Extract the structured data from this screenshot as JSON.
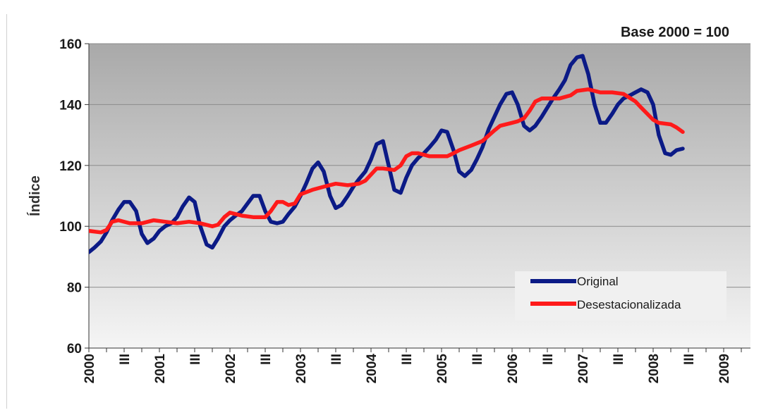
{
  "chart_data": {
    "type": "line",
    "note": "Base 2000 = 100",
    "ylabel": "Índice",
    "ylim": [
      60,
      160
    ],
    "yticks": [
      60,
      80,
      100,
      120,
      140,
      160
    ],
    "grid": true,
    "legend_position": "bottom-right",
    "x_tick_labels": [
      "2000",
      "III",
      "2001",
      "III",
      "2002",
      "III",
      "2003",
      "III",
      "2004",
      "III",
      "2005",
      "III",
      "2006",
      "III",
      "2007",
      "III",
      "2008",
      "III",
      "2009"
    ],
    "colors": {
      "plot_bg_top": "#a9a9a9",
      "plot_bg_bottom": "#f5f5f5"
    },
    "series": [
      {
        "name": "Original",
        "color": "#0b1a86",
        "points": [
          [
            2000.0,
            91.5
          ],
          [
            2000.08,
            93
          ],
          [
            2000.17,
            95
          ],
          [
            2000.25,
            98
          ],
          [
            2000.33,
            102
          ],
          [
            2000.42,
            105.5
          ],
          [
            2000.5,
            108
          ],
          [
            2000.58,
            108
          ],
          [
            2000.67,
            105
          ],
          [
            2000.75,
            97.5
          ],
          [
            2000.83,
            94.5
          ],
          [
            2000.92,
            96
          ],
          [
            2001.0,
            98.5
          ],
          [
            2001.08,
            100
          ],
          [
            2001.17,
            101
          ],
          [
            2001.25,
            103
          ],
          [
            2001.33,
            106.5
          ],
          [
            2001.42,
            109.5
          ],
          [
            2001.5,
            108
          ],
          [
            2001.58,
            100
          ],
          [
            2001.67,
            94
          ],
          [
            2001.75,
            93
          ],
          [
            2001.83,
            96
          ],
          [
            2001.92,
            100
          ],
          [
            2002.0,
            102
          ],
          [
            2002.08,
            103.5
          ],
          [
            2002.17,
            105
          ],
          [
            2002.25,
            107.5
          ],
          [
            2002.33,
            110
          ],
          [
            2002.42,
            110
          ],
          [
            2002.5,
            105
          ],
          [
            2002.58,
            101.5
          ],
          [
            2002.67,
            101
          ],
          [
            2002.75,
            101.5
          ],
          [
            2002.83,
            104
          ],
          [
            2002.92,
            106.5
          ],
          [
            2003.0,
            110
          ],
          [
            2003.08,
            114
          ],
          [
            2003.17,
            119
          ],
          [
            2003.25,
            121
          ],
          [
            2003.33,
            118
          ],
          [
            2003.42,
            110
          ],
          [
            2003.5,
            106
          ],
          [
            2003.58,
            107
          ],
          [
            2003.67,
            110
          ],
          [
            2003.75,
            113
          ],
          [
            2003.83,
            115.5
          ],
          [
            2003.92,
            118
          ],
          [
            2004.0,
            122
          ],
          [
            2004.08,
            127
          ],
          [
            2004.17,
            128
          ],
          [
            2004.25,
            120
          ],
          [
            2004.33,
            112
          ],
          [
            2004.42,
            111
          ],
          [
            2004.5,
            116
          ],
          [
            2004.58,
            120
          ],
          [
            2004.67,
            122.5
          ],
          [
            2004.75,
            124
          ],
          [
            2004.83,
            126
          ],
          [
            2004.92,
            128.5
          ],
          [
            2005.0,
            131.5
          ],
          [
            2005.08,
            131
          ],
          [
            2005.17,
            125
          ],
          [
            2005.25,
            118
          ],
          [
            2005.33,
            116.5
          ],
          [
            2005.42,
            118.5
          ],
          [
            2005.5,
            122
          ],
          [
            2005.58,
            126
          ],
          [
            2005.67,
            132
          ],
          [
            2005.75,
            136
          ],
          [
            2005.83,
            140
          ],
          [
            2005.92,
            143.5
          ],
          [
            2006.0,
            144
          ],
          [
            2006.08,
            140
          ],
          [
            2006.17,
            133
          ],
          [
            2006.25,
            131.5
          ],
          [
            2006.33,
            133
          ],
          [
            2006.42,
            136
          ],
          [
            2006.5,
            139
          ],
          [
            2006.58,
            142
          ],
          [
            2006.67,
            145
          ],
          [
            2006.75,
            148
          ],
          [
            2006.83,
            153
          ],
          [
            2006.92,
            155.5
          ],
          [
            2007.0,
            156
          ],
          [
            2007.08,
            150
          ],
          [
            2007.17,
            140
          ],
          [
            2007.25,
            134
          ],
          [
            2007.33,
            134
          ],
          [
            2007.42,
            137
          ],
          [
            2007.5,
            140
          ],
          [
            2007.58,
            142
          ],
          [
            2007.67,
            143
          ],
          [
            2007.75,
            144
          ],
          [
            2007.83,
            145
          ],
          [
            2007.92,
            144
          ],
          [
            2008.0,
            140
          ],
          [
            2008.08,
            130
          ],
          [
            2008.17,
            124
          ],
          [
            2008.25,
            123.5
          ],
          [
            2008.33,
            125
          ],
          [
            2008.42,
            125.5
          ]
        ]
      },
      {
        "name": "Desestacionalizada",
        "color": "#ff1a1a",
        "points": [
          [
            2000.0,
            98.5
          ],
          [
            2000.17,
            98
          ],
          [
            2000.25,
            98.8
          ],
          [
            2000.33,
            101.5
          ],
          [
            2000.42,
            102
          ],
          [
            2000.58,
            101
          ],
          [
            2000.75,
            101
          ],
          [
            2000.92,
            102
          ],
          [
            2001.08,
            101.5
          ],
          [
            2001.25,
            101
          ],
          [
            2001.42,
            101.5
          ],
          [
            2001.58,
            101
          ],
          [
            2001.75,
            100
          ],
          [
            2001.83,
            100.5
          ],
          [
            2001.92,
            103
          ],
          [
            2002.0,
            104.5
          ],
          [
            2002.17,
            103.5
          ],
          [
            2002.33,
            103
          ],
          [
            2002.5,
            103
          ],
          [
            2002.58,
            105
          ],
          [
            2002.67,
            108
          ],
          [
            2002.75,
            108
          ],
          [
            2002.83,
            107
          ],
          [
            2002.92,
            107.5
          ],
          [
            2003.0,
            110.5
          ],
          [
            2003.17,
            112
          ],
          [
            2003.33,
            113
          ],
          [
            2003.5,
            114
          ],
          [
            2003.67,
            113.5
          ],
          [
            2003.83,
            114
          ],
          [
            2003.92,
            115
          ],
          [
            2004.0,
            117
          ],
          [
            2004.08,
            119
          ],
          [
            2004.17,
            119
          ],
          [
            2004.33,
            118.5
          ],
          [
            2004.42,
            120
          ],
          [
            2004.5,
            123
          ],
          [
            2004.58,
            124
          ],
          [
            2004.67,
            124
          ],
          [
            2004.83,
            123
          ],
          [
            2005.0,
            123
          ],
          [
            2005.08,
            123
          ],
          [
            2005.17,
            124
          ],
          [
            2005.25,
            125
          ],
          [
            2005.42,
            126.5
          ],
          [
            2005.58,
            128
          ],
          [
            2005.75,
            131.5
          ],
          [
            2005.83,
            133
          ],
          [
            2006.0,
            134
          ],
          [
            2006.08,
            134.5
          ],
          [
            2006.17,
            135.5
          ],
          [
            2006.25,
            138
          ],
          [
            2006.33,
            141
          ],
          [
            2006.42,
            142
          ],
          [
            2006.67,
            142
          ],
          [
            2006.83,
            143
          ],
          [
            2006.92,
            144.5
          ],
          [
            2007.08,
            145
          ],
          [
            2007.17,
            144.5
          ],
          [
            2007.25,
            144
          ],
          [
            2007.42,
            144
          ],
          [
            2007.58,
            143.5
          ],
          [
            2007.75,
            141
          ],
          [
            2007.83,
            139
          ],
          [
            2008.0,
            135
          ],
          [
            2008.08,
            134
          ],
          [
            2008.25,
            133.5
          ],
          [
            2008.33,
            132.5
          ],
          [
            2008.42,
            131
          ]
        ]
      }
    ]
  }
}
